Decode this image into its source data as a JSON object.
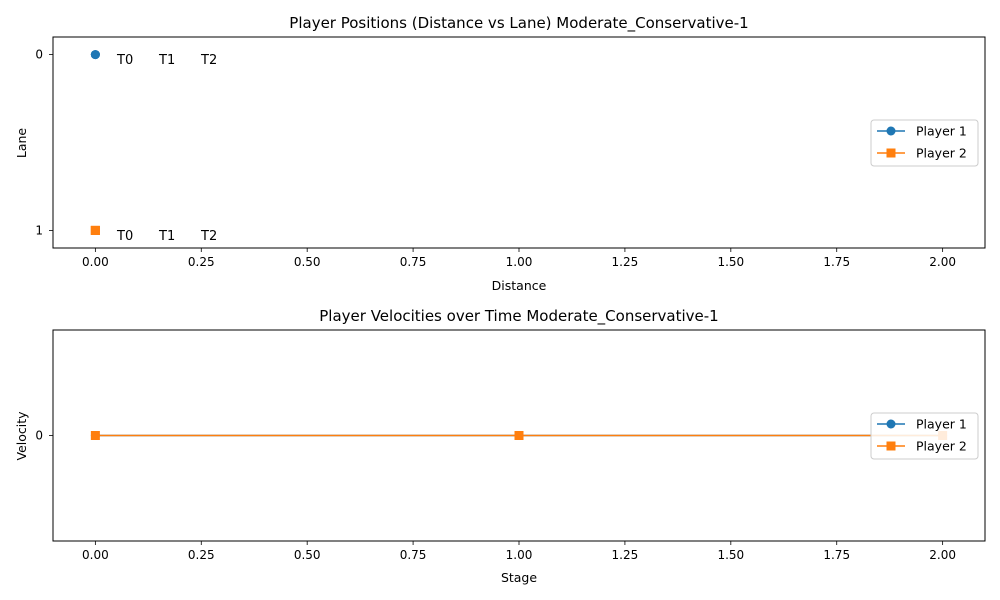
{
  "colors": {
    "player1": "#1f77b4",
    "player2": "#ff7f0e",
    "axis": "#000000",
    "legend_border": "#cccccc"
  },
  "chart_data": [
    {
      "type": "line",
      "title": "Player Positions (Distance vs Lane) Moderate_Conservative-1",
      "xlabel": "Distance",
      "ylabel": "Lane",
      "xlim": [
        -0.1,
        2.1
      ],
      "ylim": [
        1.1,
        -0.1
      ],
      "y_inverted": true,
      "xticks": [
        0,
        0.25,
        0.5,
        0.75,
        1.0,
        1.25,
        1.5,
        1.75,
        2.0
      ],
      "xtick_labels": [
        "0.00",
        "0.25",
        "0.50",
        "0.75",
        "1.00",
        "1.25",
        "1.50",
        "1.75",
        "2.00"
      ],
      "yticks": [
        0,
        1
      ],
      "ytick_labels": [
        "0",
        "1"
      ],
      "grid": false,
      "legend_position": "center-right",
      "series": [
        {
          "name": "Player 1",
          "marker": "circle",
          "color": "#1f77b4",
          "x": [
            0,
            0,
            0
          ],
          "y": [
            0,
            0,
            0
          ]
        },
        {
          "name": "Player 2",
          "marker": "square",
          "color": "#ff7f0e",
          "x": [
            0,
            0,
            0
          ],
          "y": [
            1,
            1,
            1
          ]
        }
      ],
      "annotations": [
        {
          "text": "T0",
          "series": "Player 1"
        },
        {
          "text": "T1",
          "series": "Player 1"
        },
        {
          "text": "T2",
          "series": "Player 1"
        },
        {
          "text": "T0",
          "series": "Player 2"
        },
        {
          "text": "T1",
          "series": "Player 2"
        },
        {
          "text": "T2",
          "series": "Player 2"
        }
      ]
    },
    {
      "type": "line",
      "title": "Player Velocities over Time Moderate_Conservative-1",
      "xlabel": "Stage",
      "ylabel": "Velocity",
      "xlim": [
        -0.1,
        2.1
      ],
      "ylim": [
        -0.06,
        0.06
      ],
      "xticks": [
        0,
        0.25,
        0.5,
        0.75,
        1.0,
        1.25,
        1.5,
        1.75,
        2.0
      ],
      "xtick_labels": [
        "0.00",
        "0.25",
        "0.50",
        "0.75",
        "1.00",
        "1.25",
        "1.50",
        "1.75",
        "2.00"
      ],
      "yticks": [
        0
      ],
      "ytick_labels": [
        "0"
      ],
      "grid": false,
      "legend_position": "center-right",
      "series": [
        {
          "name": "Player 1",
          "marker": "circle",
          "color": "#1f77b4",
          "x": [
            0,
            1,
            2
          ],
          "y": [
            0,
            0,
            0
          ]
        },
        {
          "name": "Player 2",
          "marker": "square",
          "color": "#ff7f0e",
          "x": [
            0,
            1,
            2
          ],
          "y": [
            0,
            0,
            0
          ]
        }
      ],
      "annotations": []
    }
  ]
}
